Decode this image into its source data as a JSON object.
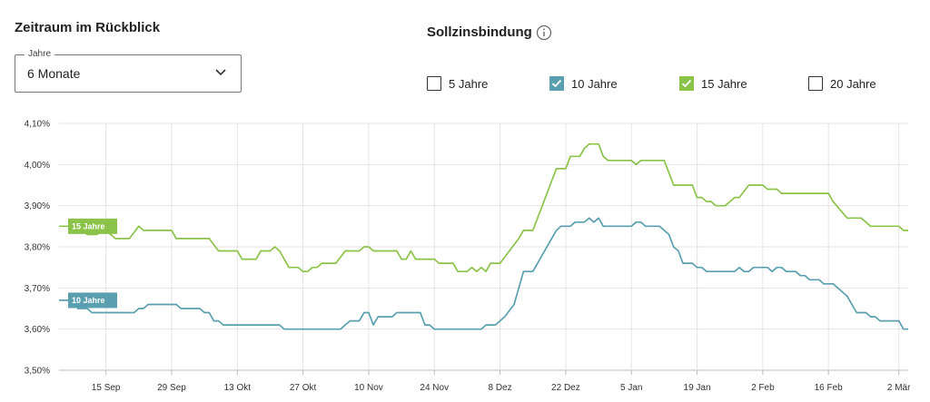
{
  "period": {
    "title": "Zeitraum im Rückblick",
    "select_legend": "Jahre",
    "select_value": "6 Monate"
  },
  "rate_lock": {
    "title": "Sollzinsbindung",
    "options": [
      {
        "label": "5 Jahre",
        "checked": false,
        "color": "#333333"
      },
      {
        "label": "10 Jahre",
        "checked": true,
        "color": "#5a9fb0"
      },
      {
        "label": "15 Jahre",
        "checked": true,
        "color": "#8bc34a"
      },
      {
        "label": "20 Jahre",
        "checked": false,
        "color": "#333333"
      }
    ]
  },
  "chart_data": {
    "type": "line",
    "x_start": "2023-09-05",
    "x_end": "2024-03-04",
    "ylim": [
      3.5,
      4.1
    ],
    "y_ticks": [
      3.5,
      3.6,
      3.7,
      3.8,
      3.9,
      4.0,
      4.1
    ],
    "y_tick_labels": [
      "3,50%",
      "3,60%",
      "3,70%",
      "3,80%",
      "3,90%",
      "4,00%",
      "4,10%"
    ],
    "x_ticks": [
      {
        "date": "2023-09-15",
        "label": "15 Sep"
      },
      {
        "date": "2023-09-29",
        "label": "29 Sep"
      },
      {
        "date": "2023-10-13",
        "label": "13 Okt"
      },
      {
        "date": "2023-10-27",
        "label": "27 Okt"
      },
      {
        "date": "2023-11-10",
        "label": "10 Nov"
      },
      {
        "date": "2023-11-24",
        "label": "24 Nov"
      },
      {
        "date": "2023-12-08",
        "label": "8 Dez"
      },
      {
        "date": "2023-12-22",
        "label": "22 Dez"
      },
      {
        "date": "2024-01-05",
        "label": "5 Jan"
      },
      {
        "date": "2024-01-19",
        "label": "19 Jan"
      },
      {
        "date": "2024-02-02",
        "label": "2 Feb"
      },
      {
        "date": "2024-02-16",
        "label": "16 Feb"
      },
      {
        "date": "2024-03-02",
        "label": "2 Mär"
      }
    ],
    "grid": true,
    "series": [
      {
        "name": "15 Jahre",
        "color": "#8bc34a",
        "points": [
          [
            "2023-09-05",
            3.85
          ],
          [
            "2023-09-07",
            3.85
          ],
          [
            "2023-09-08",
            3.84
          ],
          [
            "2023-09-10",
            3.84
          ],
          [
            "2023-09-11",
            3.83
          ],
          [
            "2023-09-13",
            3.83
          ],
          [
            "2023-09-15",
            3.84
          ],
          [
            "2023-09-17",
            3.82
          ],
          [
            "2023-09-20",
            3.82
          ],
          [
            "2023-09-22",
            3.85
          ],
          [
            "2023-09-23",
            3.84
          ],
          [
            "2023-09-29",
            3.84
          ],
          [
            "2023-09-30",
            3.82
          ],
          [
            "2023-10-07",
            3.82
          ],
          [
            "2023-10-09",
            3.79
          ],
          [
            "2023-10-13",
            3.79
          ],
          [
            "2023-10-14",
            3.77
          ],
          [
            "2023-10-17",
            3.77
          ],
          [
            "2023-10-18",
            3.79
          ],
          [
            "2023-10-20",
            3.79
          ],
          [
            "2023-10-21",
            3.8
          ],
          [
            "2023-10-22",
            3.79
          ],
          [
            "2023-10-24",
            3.75
          ],
          [
            "2023-10-26",
            3.75
          ],
          [
            "2023-10-27",
            3.74
          ],
          [
            "2023-10-28",
            3.74
          ],
          [
            "2023-10-29",
            3.75
          ],
          [
            "2023-10-30",
            3.75
          ],
          [
            "2023-10-31",
            3.76
          ],
          [
            "2023-11-03",
            3.76
          ],
          [
            "2023-11-05",
            3.79
          ],
          [
            "2023-11-08",
            3.79
          ],
          [
            "2023-11-09",
            3.8
          ],
          [
            "2023-11-10",
            3.8
          ],
          [
            "2023-11-11",
            3.79
          ],
          [
            "2023-11-16",
            3.79
          ],
          [
            "2023-11-17",
            3.77
          ],
          [
            "2023-11-18",
            3.77
          ],
          [
            "2023-11-19",
            3.79
          ],
          [
            "2023-11-20",
            3.77
          ],
          [
            "2023-11-24",
            3.77
          ],
          [
            "2023-11-25",
            3.76
          ],
          [
            "2023-11-28",
            3.76
          ],
          [
            "2023-11-29",
            3.74
          ],
          [
            "2023-12-01",
            3.74
          ],
          [
            "2023-12-02",
            3.75
          ],
          [
            "2023-12-03",
            3.74
          ],
          [
            "2023-12-04",
            3.75
          ],
          [
            "2023-12-05",
            3.74
          ],
          [
            "2023-12-06",
            3.76
          ],
          [
            "2023-12-08",
            3.76
          ],
          [
            "2023-12-10",
            3.79
          ],
          [
            "2023-12-12",
            3.82
          ],
          [
            "2023-12-13",
            3.84
          ],
          [
            "2023-12-15",
            3.84
          ],
          [
            "2023-12-17",
            3.9
          ],
          [
            "2023-12-19",
            3.96
          ],
          [
            "2023-12-20",
            3.99
          ],
          [
            "2023-12-22",
            3.99
          ],
          [
            "2023-12-23",
            4.02
          ],
          [
            "2023-12-25",
            4.02
          ],
          [
            "2023-12-26",
            4.04
          ],
          [
            "2023-12-27",
            4.05
          ],
          [
            "2023-12-29",
            4.05
          ],
          [
            "2023-12-30",
            4.02
          ],
          [
            "2023-12-31",
            4.01
          ],
          [
            "2024-01-05",
            4.01
          ],
          [
            "2024-01-06",
            4.0
          ],
          [
            "2024-01-07",
            4.01
          ],
          [
            "2024-01-12",
            4.01
          ],
          [
            "2024-01-13",
            3.98
          ],
          [
            "2024-01-14",
            3.95
          ],
          [
            "2024-01-18",
            3.95
          ],
          [
            "2024-01-19",
            3.92
          ],
          [
            "2024-01-20",
            3.92
          ],
          [
            "2024-01-21",
            3.91
          ],
          [
            "2024-01-22",
            3.91
          ],
          [
            "2024-01-23",
            3.9
          ],
          [
            "2024-01-25",
            3.9
          ],
          [
            "2024-01-27",
            3.92
          ],
          [
            "2024-01-28",
            3.92
          ],
          [
            "2024-01-30",
            3.95
          ],
          [
            "2024-02-02",
            3.95
          ],
          [
            "2024-02-03",
            3.94
          ],
          [
            "2024-02-05",
            3.94
          ],
          [
            "2024-02-06",
            3.93
          ],
          [
            "2024-02-16",
            3.93
          ],
          [
            "2024-02-17",
            3.91
          ],
          [
            "2024-02-20",
            3.87
          ],
          [
            "2024-02-23",
            3.87
          ],
          [
            "2024-02-25",
            3.85
          ],
          [
            "2024-03-02",
            3.85
          ],
          [
            "2024-03-03",
            3.84
          ],
          [
            "2024-03-04",
            3.84
          ]
        ]
      },
      {
        "name": "10 Jahre",
        "color": "#5a9fb0",
        "points": [
          [
            "2023-09-05",
            3.67
          ],
          [
            "2023-09-08",
            3.67
          ],
          [
            "2023-09-09",
            3.65
          ],
          [
            "2023-09-11",
            3.65
          ],
          [
            "2023-09-12",
            3.64
          ],
          [
            "2023-09-21",
            3.64
          ],
          [
            "2023-09-22",
            3.65
          ],
          [
            "2023-09-23",
            3.65
          ],
          [
            "2023-09-24",
            3.66
          ],
          [
            "2023-09-30",
            3.66
          ],
          [
            "2023-10-01",
            3.65
          ],
          [
            "2023-10-05",
            3.65
          ],
          [
            "2023-10-06",
            3.64
          ],
          [
            "2023-10-07",
            3.64
          ],
          [
            "2023-10-08",
            3.62
          ],
          [
            "2023-10-09",
            3.62
          ],
          [
            "2023-10-10",
            3.61
          ],
          [
            "2023-10-22",
            3.61
          ],
          [
            "2023-10-23",
            3.6
          ],
          [
            "2023-11-04",
            3.6
          ],
          [
            "2023-11-05",
            3.61
          ],
          [
            "2023-11-06",
            3.62
          ],
          [
            "2023-11-08",
            3.62
          ],
          [
            "2023-11-09",
            3.64
          ],
          [
            "2023-11-10",
            3.64
          ],
          [
            "2023-11-11",
            3.61
          ],
          [
            "2023-11-12",
            3.63
          ],
          [
            "2023-11-15",
            3.63
          ],
          [
            "2023-11-16",
            3.64
          ],
          [
            "2023-11-21",
            3.64
          ],
          [
            "2023-11-22",
            3.61
          ],
          [
            "2023-11-23",
            3.61
          ],
          [
            "2023-11-24",
            3.6
          ],
          [
            "2023-12-04",
            3.6
          ],
          [
            "2023-12-05",
            3.61
          ],
          [
            "2023-12-07",
            3.61
          ],
          [
            "2023-12-09",
            3.63
          ],
          [
            "2023-12-11",
            3.66
          ],
          [
            "2023-12-13",
            3.74
          ],
          [
            "2023-12-15",
            3.74
          ],
          [
            "2023-12-16",
            3.76
          ],
          [
            "2023-12-18",
            3.8
          ],
          [
            "2023-12-20",
            3.84
          ],
          [
            "2023-12-21",
            3.85
          ],
          [
            "2023-12-23",
            3.85
          ],
          [
            "2023-12-24",
            3.86
          ],
          [
            "2023-12-26",
            3.86
          ],
          [
            "2023-12-27",
            3.87
          ],
          [
            "2023-12-28",
            3.86
          ],
          [
            "2023-12-29",
            3.87
          ],
          [
            "2023-12-30",
            3.85
          ],
          [
            "2024-01-05",
            3.85
          ],
          [
            "2024-01-06",
            3.86
          ],
          [
            "2024-01-07",
            3.86
          ],
          [
            "2024-01-08",
            3.85
          ],
          [
            "2024-01-11",
            3.85
          ],
          [
            "2024-01-13",
            3.83
          ],
          [
            "2024-01-14",
            3.8
          ],
          [
            "2024-01-15",
            3.79
          ],
          [
            "2024-01-16",
            3.76
          ],
          [
            "2024-01-18",
            3.76
          ],
          [
            "2024-01-19",
            3.75
          ],
          [
            "2024-01-20",
            3.75
          ],
          [
            "2024-01-21",
            3.74
          ],
          [
            "2024-01-27",
            3.74
          ],
          [
            "2024-01-28",
            3.75
          ],
          [
            "2024-01-29",
            3.74
          ],
          [
            "2024-01-30",
            3.74
          ],
          [
            "2024-01-31",
            3.75
          ],
          [
            "2024-02-03",
            3.75
          ],
          [
            "2024-02-04",
            3.74
          ],
          [
            "2024-02-05",
            3.75
          ],
          [
            "2024-02-06",
            3.75
          ],
          [
            "2024-02-07",
            3.74
          ],
          [
            "2024-02-09",
            3.74
          ],
          [
            "2024-02-10",
            3.73
          ],
          [
            "2024-02-11",
            3.73
          ],
          [
            "2024-02-12",
            3.72
          ],
          [
            "2024-02-14",
            3.72
          ],
          [
            "2024-02-15",
            3.71
          ],
          [
            "2024-02-17",
            3.71
          ],
          [
            "2024-02-19",
            3.69
          ],
          [
            "2024-02-20",
            3.68
          ],
          [
            "2024-02-22",
            3.64
          ],
          [
            "2024-02-24",
            3.64
          ],
          [
            "2024-02-25",
            3.63
          ],
          [
            "2024-02-26",
            3.63
          ],
          [
            "2024-02-27",
            3.62
          ],
          [
            "2024-03-02",
            3.62
          ],
          [
            "2024-03-03",
            3.6
          ],
          [
            "2024-03-04",
            3.6
          ]
        ]
      }
    ]
  }
}
